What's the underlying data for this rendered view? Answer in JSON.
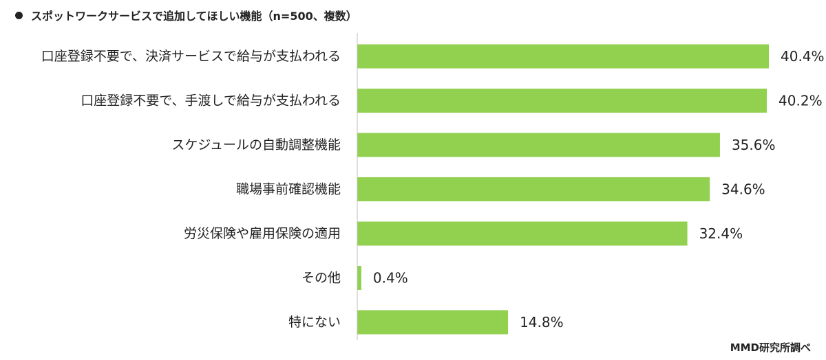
{
  "chart_data": {
    "type": "bar",
    "orientation": "horizontal",
    "title": "スポットワークサービスで追加してほしい機能（n=500、複数）",
    "categories": [
      "口座登録不要で、決済サービスで給与が支払われる",
      "口座登録不要で、手渡しで給与が支払われる",
      "スケジュールの自動調整機能",
      "職場事前確認機能",
      "労災保険や雇用保険の適用",
      "その他",
      "特にない"
    ],
    "values": [
      40.4,
      40.2,
      35.6,
      34.6,
      32.4,
      0.4,
      14.8
    ],
    "value_labels": [
      "40.4%",
      "40.2%",
      "35.6%",
      "34.6%",
      "32.4%",
      "0.4%",
      "14.8%"
    ],
    "unit": "%",
    "xlim": [
      0,
      40.4
    ],
    "grid": false,
    "legend": "none",
    "bar_color": "#92d050",
    "axis_color": "#bfbfbf"
  },
  "source": "MMD研究所調べ"
}
